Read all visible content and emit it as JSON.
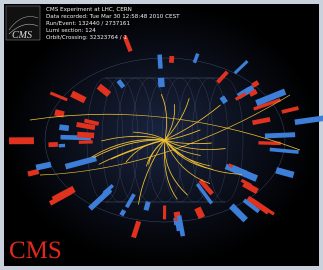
{
  "header": {
    "logo": "CMS",
    "lines": [
      "CMS Experiment at LHC, CERN",
      "Data recorded: Tue Mar 30 12:58:48 2010 CEST",
      "Run/Event: 132440 / 2737161",
      "Lumi section: 124",
      "Orbit/Crossing: 32323764 / 1"
    ]
  },
  "footer": {
    "label": "CMS"
  }
}
